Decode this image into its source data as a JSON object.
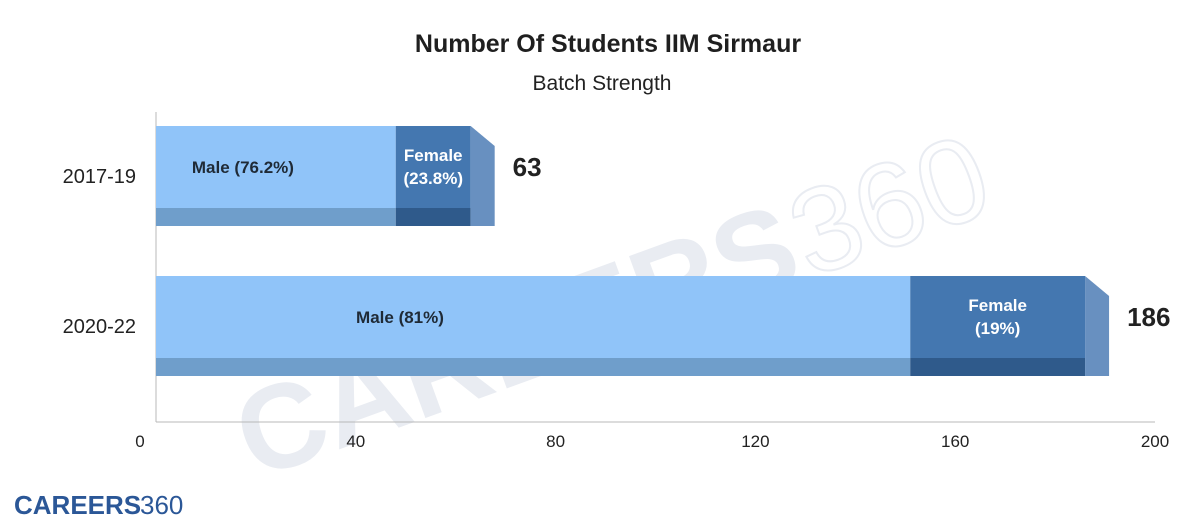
{
  "brand": {
    "main": "CAREERS",
    "num": "360"
  },
  "chart_data": {
    "type": "bar",
    "orientation": "horizontal",
    "stacked": true,
    "title": "Number Of Students IIM Sirmaur",
    "subtitle": "Batch Strength",
    "categories": [
      "2017-19",
      "2020-22"
    ],
    "totals": [
      63,
      186
    ],
    "series": [
      {
        "values": [
          48,
          151
        ],
        "labels": [
          "Male (76.2%)",
          "Male (81%)"
        ],
        "color": "#90c4f9",
        "shade": "#6f9ecb",
        "text_color": "#1f2a36"
      },
      {
        "values": [
          15,
          35
        ],
        "labels": [
          "Female (23.8%)",
          "Female (19%)"
        ],
        "color": "#4477b0",
        "shade": "#2f5a8b",
        "text_color": "#ffffff"
      }
    ],
    "xlim": [
      0,
      200
    ],
    "xticks": [
      0,
      40,
      80,
      120,
      160,
      200
    ],
    "grid": false,
    "legend": "none"
  }
}
